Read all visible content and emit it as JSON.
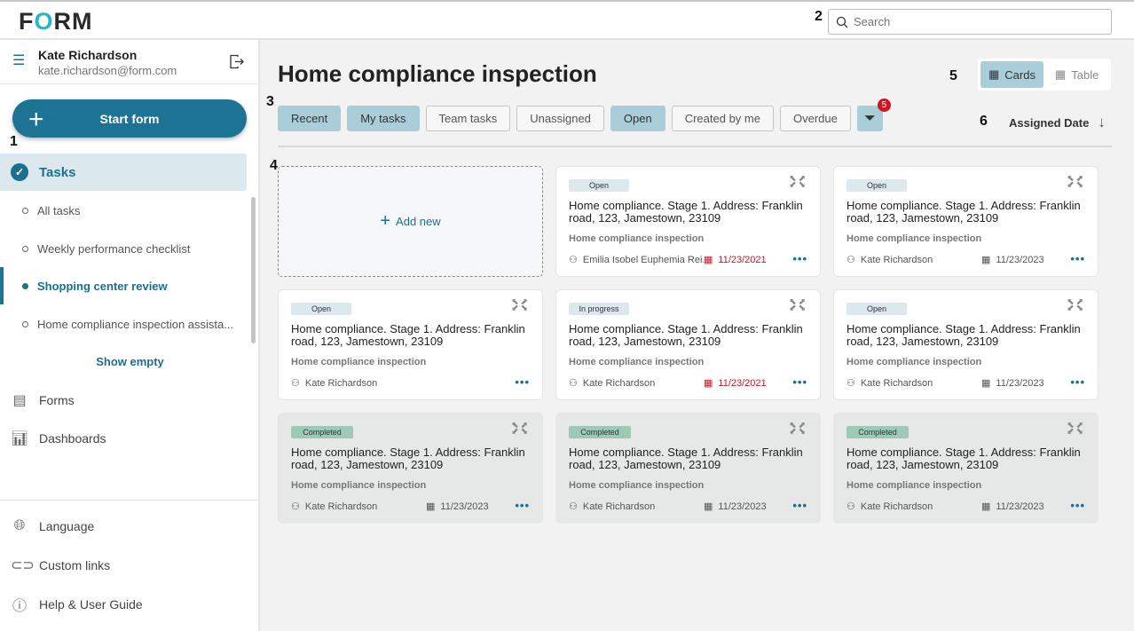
{
  "header": {
    "logo": "FORM",
    "search_placeholder": "Search"
  },
  "annotations": [
    "1",
    "2",
    "3",
    "4",
    "5",
    "6"
  ],
  "user": {
    "name": "Kate Richardson",
    "email": "kate.richardson@form.com"
  },
  "sidebar": {
    "start_form": "Start form",
    "tasks": "Tasks",
    "task_lists": [
      {
        "label": "All tasks",
        "active": false
      },
      {
        "label": "Weekly performance checklist",
        "active": false
      },
      {
        "label": "Shopping center review",
        "active": true
      },
      {
        "label": "Home compliance  inspection assista...",
        "active": false
      }
    ],
    "show_empty": "Show empty",
    "nav": [
      "Forms",
      "Dashboards"
    ],
    "bottom": [
      "Language",
      "Custom links",
      "Help & User Guide"
    ]
  },
  "main": {
    "title": "Home compliance inspection",
    "view": {
      "cards": "Cards",
      "table": "Table",
      "selected": "Cards"
    },
    "filters": [
      {
        "label": "Recent",
        "on": true
      },
      {
        "label": "My tasks",
        "on": true
      },
      {
        "label": "Team tasks",
        "on": false
      },
      {
        "label": "Unassigned",
        "on": false
      },
      {
        "label": "Open",
        "on": true
      },
      {
        "label": "Created by me",
        "on": false
      },
      {
        "label": "Overdue",
        "on": false
      }
    ],
    "filter_count": "5",
    "sort": "Assigned Date",
    "add_new": "Add new",
    "cards": [
      {
        "status": "Open",
        "title": "Home compliance. Stage 1. Address: Franklin road, 123, Jamestown, 23109",
        "form": "Home compliance  inspection",
        "assignee": "Emilia Isobel Euphemia Rei...",
        "date": "11/23/2021",
        "overdue": true
      },
      {
        "status": "Open",
        "title": "Home compliance. Stage 1. Address: Franklin road, 123, Jamestown, 23109",
        "form": "Home compliance  inspection",
        "assignee": "Kate Richardson",
        "date": "11/23/2023",
        "overdue": false
      },
      {
        "status": "Open",
        "title": "Home compliance. Stage 1. Address: Franklin road, 123, Jamestown, 23109",
        "form": "Home compliance  inspection",
        "assignee": "Kate Richardson",
        "date": "",
        "overdue": false
      },
      {
        "status": "In progress",
        "title": "Home compliance. Stage 1. Address: Franklin road, 123, Jamestown, 23109",
        "form": "Home compliance  inspection",
        "assignee": "Kate Richardson",
        "date": "11/23/2021",
        "overdue": true
      },
      {
        "status": "Open",
        "title": "Home compliance. Stage 1. Address: Franklin road, 123, Jamestown, 23109",
        "form": "Home compliance  inspection",
        "assignee": "Kate Richardson",
        "date": "11/23/2023",
        "overdue": false
      },
      {
        "status": "Completed",
        "title": "Home compliance. Stage 1. Address: Franklin road, 123, Jamestown, 23109",
        "form": "Home compliance  inspection",
        "assignee": "Kate Richardson",
        "date": "11/23/2023",
        "overdue": false
      },
      {
        "status": "Completed",
        "title": "Home compliance. Stage 1. Address: Franklin road, 123, Jamestown, 23109",
        "form": "Home compliance  inspection",
        "assignee": "Kate Richardson",
        "date": "11/23/2023",
        "overdue": false
      },
      {
        "status": "Completed",
        "title": "Home compliance. Stage 1. Address: Franklin road, 123, Jamestown, 23109",
        "form": "Home compliance  inspection",
        "assignee": "Kate Richardson",
        "date": "11/23/2023",
        "overdue": false
      }
    ]
  },
  "colors": {
    "primary": "#1c7394",
    "chip_active": "#a9cdd9",
    "overdue": "#c1172a",
    "completed": "#9ccab4",
    "badge": "#d3121f"
  }
}
